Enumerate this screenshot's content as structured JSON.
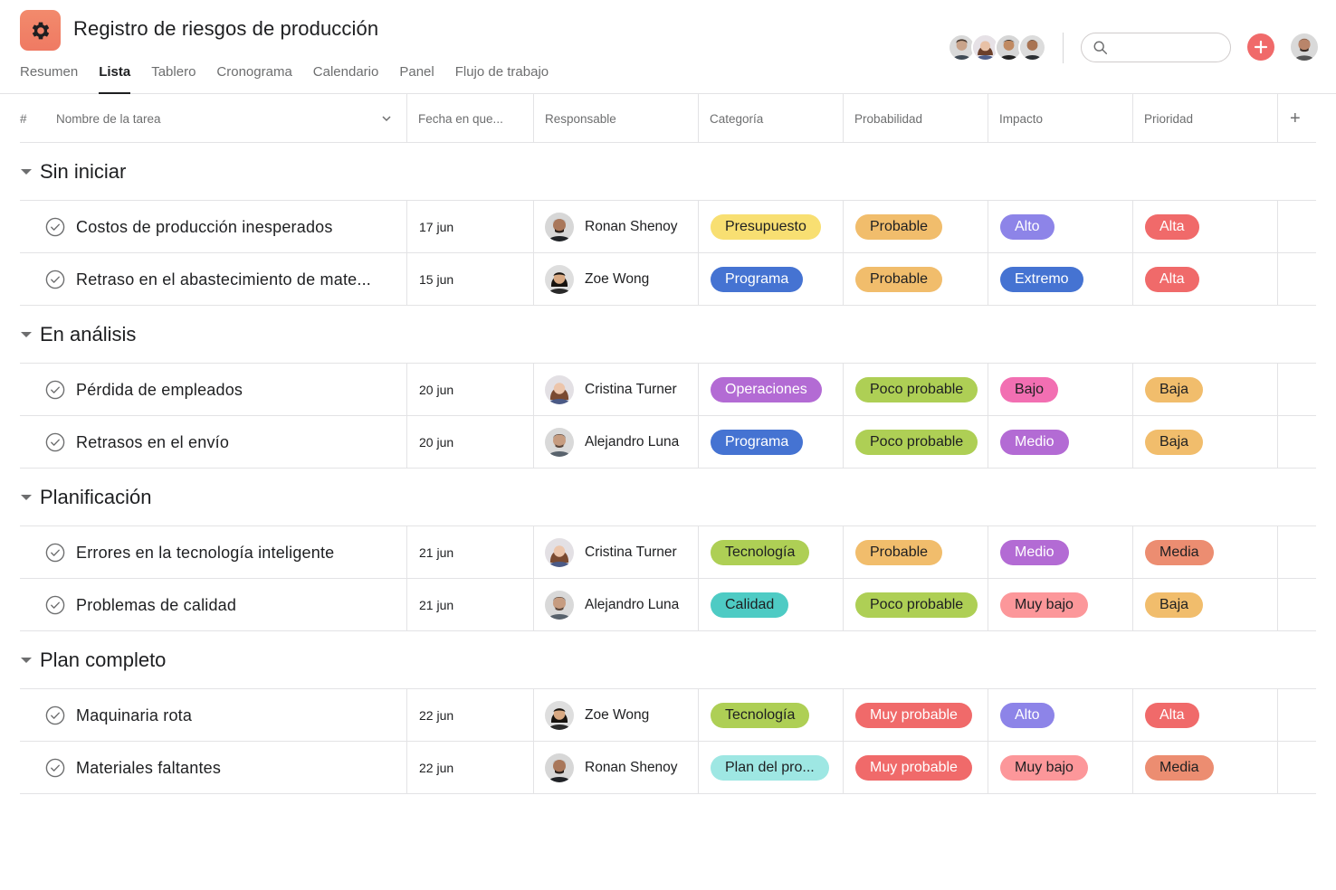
{
  "project": {
    "title": "Registro de riesgos de producción"
  },
  "tabs": [
    "Resumen",
    "Lista",
    "Tablero",
    "Cronograma",
    "Calendario",
    "Panel",
    "Flujo de trabajo"
  ],
  "active_tab": "Lista",
  "search": {
    "placeholder": "",
    "value": ""
  },
  "columns": {
    "num": "#",
    "name": "Nombre de la tarea",
    "date": "Fecha en que...",
    "assignee": "Responsable",
    "category": "Categoría",
    "probability": "Probabilidad",
    "impact": "Impacto",
    "priority": "Prioridad",
    "add": "+"
  },
  "colors": {
    "accent": "#f06a6a",
    "yellow": "#f8df72",
    "orange": "#f1bd6c",
    "blue": "#4573d2",
    "purple": "#8d84e8",
    "violet": "#b36bd4",
    "green": "#aecf55",
    "red": "#f06a6a",
    "pink": "#f26fb2",
    "lightpink": "#fc979a",
    "coral": "#ec8d71",
    "teal": "#5da283",
    "aqua": "#4ecbc4",
    "lightaqua": "#9ee7e3",
    "olive": "#aecf55"
  },
  "sections": [
    {
      "title": "Sin iniciar",
      "rows": [
        {
          "name": "Costos de producción inesperados",
          "date": "17 jun",
          "assignee": "Ronan Shenoy",
          "category": {
            "label": "Presupuesto",
            "bg": "#f8df72",
            "fg": "#1e1f21"
          },
          "probability": {
            "label": "Probable",
            "bg": "#f1bd6c",
            "fg": "#1e1f21"
          },
          "impact": {
            "label": "Alto",
            "bg": "#8d84e8",
            "fg": "#ffffff"
          },
          "priority": {
            "label": "Alta",
            "bg": "#f06a6a",
            "fg": "#ffffff"
          }
        },
        {
          "name": "Retraso en el abastecimiento de mate...",
          "date": "15 jun",
          "assignee": "Zoe Wong",
          "category": {
            "label": "Programa",
            "bg": "#4573d2",
            "fg": "#ffffff"
          },
          "probability": {
            "label": "Probable",
            "bg": "#f1bd6c",
            "fg": "#1e1f21"
          },
          "impact": {
            "label": "Extremo",
            "bg": "#4573d2",
            "fg": "#ffffff"
          },
          "priority": {
            "label": "Alta",
            "bg": "#f06a6a",
            "fg": "#ffffff"
          }
        }
      ]
    },
    {
      "title": "En análisis",
      "rows": [
        {
          "name": "Pérdida de empleados",
          "date": "20 jun",
          "assignee": "Cristina Turner",
          "category": {
            "label": "Operaciones",
            "bg": "#b36bd4",
            "fg": "#ffffff"
          },
          "probability": {
            "label": "Poco probable",
            "bg": "#aecf55",
            "fg": "#1e1f21"
          },
          "impact": {
            "label": "Bajo",
            "bg": "#f26fb2",
            "fg": "#1e1f21"
          },
          "priority": {
            "label": "Baja",
            "bg": "#f1bd6c",
            "fg": "#1e1f21"
          }
        },
        {
          "name": "Retrasos en el envío",
          "date": "20 jun",
          "assignee": "Alejandro Luna",
          "category": {
            "label": "Programa",
            "bg": "#4573d2",
            "fg": "#ffffff"
          },
          "probability": {
            "label": "Poco probable",
            "bg": "#aecf55",
            "fg": "#1e1f21"
          },
          "impact": {
            "label": "Medio",
            "bg": "#b36bd4",
            "fg": "#ffffff"
          },
          "priority": {
            "label": "Baja",
            "bg": "#f1bd6c",
            "fg": "#1e1f21"
          }
        }
      ]
    },
    {
      "title": "Planificación",
      "rows": [
        {
          "name": "Errores en la tecnología inteligente",
          "date": "21 jun",
          "assignee": "Cristina Turner",
          "category": {
            "label": "Tecnología",
            "bg": "#aecf55",
            "fg": "#1e1f21"
          },
          "probability": {
            "label": "Probable",
            "bg": "#f1bd6c",
            "fg": "#1e1f21"
          },
          "impact": {
            "label": "Medio",
            "bg": "#b36bd4",
            "fg": "#ffffff"
          },
          "priority": {
            "label": "Media",
            "bg": "#ec8d71",
            "fg": "#1e1f21"
          }
        },
        {
          "name": "Problemas de calidad",
          "date": "21 jun",
          "assignee": "Alejandro Luna",
          "category": {
            "label": "Calidad",
            "bg": "#4ecbc4",
            "fg": "#1e1f21"
          },
          "probability": {
            "label": "Poco probable",
            "bg": "#aecf55",
            "fg": "#1e1f21"
          },
          "impact": {
            "label": "Muy bajo",
            "bg": "#fc979a",
            "fg": "#1e1f21"
          },
          "priority": {
            "label": "Baja",
            "bg": "#f1bd6c",
            "fg": "#1e1f21"
          }
        }
      ]
    },
    {
      "title": "Plan completo",
      "rows": [
        {
          "name": "Maquinaria rota",
          "date": "22 jun",
          "assignee": "Zoe Wong",
          "category": {
            "label": "Tecnología",
            "bg": "#aecf55",
            "fg": "#1e1f21"
          },
          "probability": {
            "label": "Muy probable",
            "bg": "#f06a6a",
            "fg": "#ffffff"
          },
          "impact": {
            "label": "Alto",
            "bg": "#8d84e8",
            "fg": "#ffffff"
          },
          "priority": {
            "label": "Alta",
            "bg": "#f06a6a",
            "fg": "#ffffff"
          }
        },
        {
          "name": "Materiales faltantes",
          "date": "22 jun",
          "assignee": "Ronan Shenoy",
          "category": {
            "label": "Plan del pro...",
            "bg": "#9ee7e3",
            "fg": "#1e1f21"
          },
          "probability": {
            "label": "Muy probable",
            "bg": "#f06a6a",
            "fg": "#ffffff"
          },
          "impact": {
            "label": "Muy bajo",
            "bg": "#fc979a",
            "fg": "#1e1f21"
          },
          "priority": {
            "label": "Media",
            "bg": "#ec8d71",
            "fg": "#1e1f21"
          }
        }
      ]
    }
  ],
  "icons": {
    "app": "gear-icon",
    "search": "search-icon",
    "add": "plus-icon",
    "task_check": "check-circle-icon",
    "section_toggle": "caret-down-icon",
    "column_menu": "chevron-down-icon"
  }
}
